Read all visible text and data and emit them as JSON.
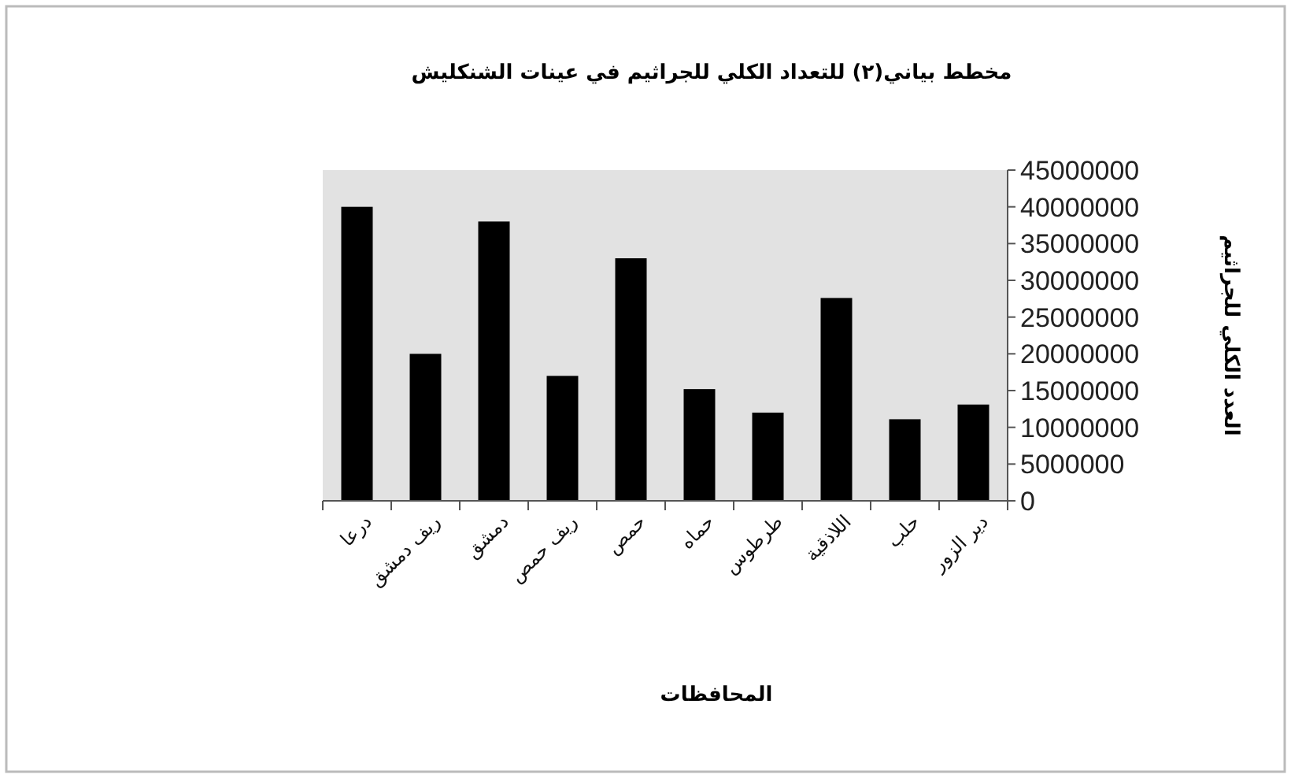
{
  "chart_data": {
    "type": "bar",
    "title": "مخطط بياني(٢) للتعداد الكلي للجراثيم في عينات الشنكليش",
    "xlabel": "المحافظات",
    "ylabel": "العدد الكلي للجراثيم",
    "categories": [
      "درعا",
      "ريف دمشق",
      "دمشق",
      "ريف حمص",
      "حمص",
      "حماه",
      "طرطوس",
      "اللاذقية",
      "حلب",
      "دير الزور"
    ],
    "values": [
      40000000,
      20000000,
      38000000,
      17000000,
      33000000,
      15200000,
      12000000,
      27600000,
      11100000,
      13100000
    ],
    "color": "#000000",
    "ylim": [
      0,
      45000000
    ],
    "yticks": [
      0,
      5000000,
      10000000,
      15000000,
      20000000,
      25000000,
      30000000,
      35000000,
      40000000,
      45000000
    ]
  }
}
